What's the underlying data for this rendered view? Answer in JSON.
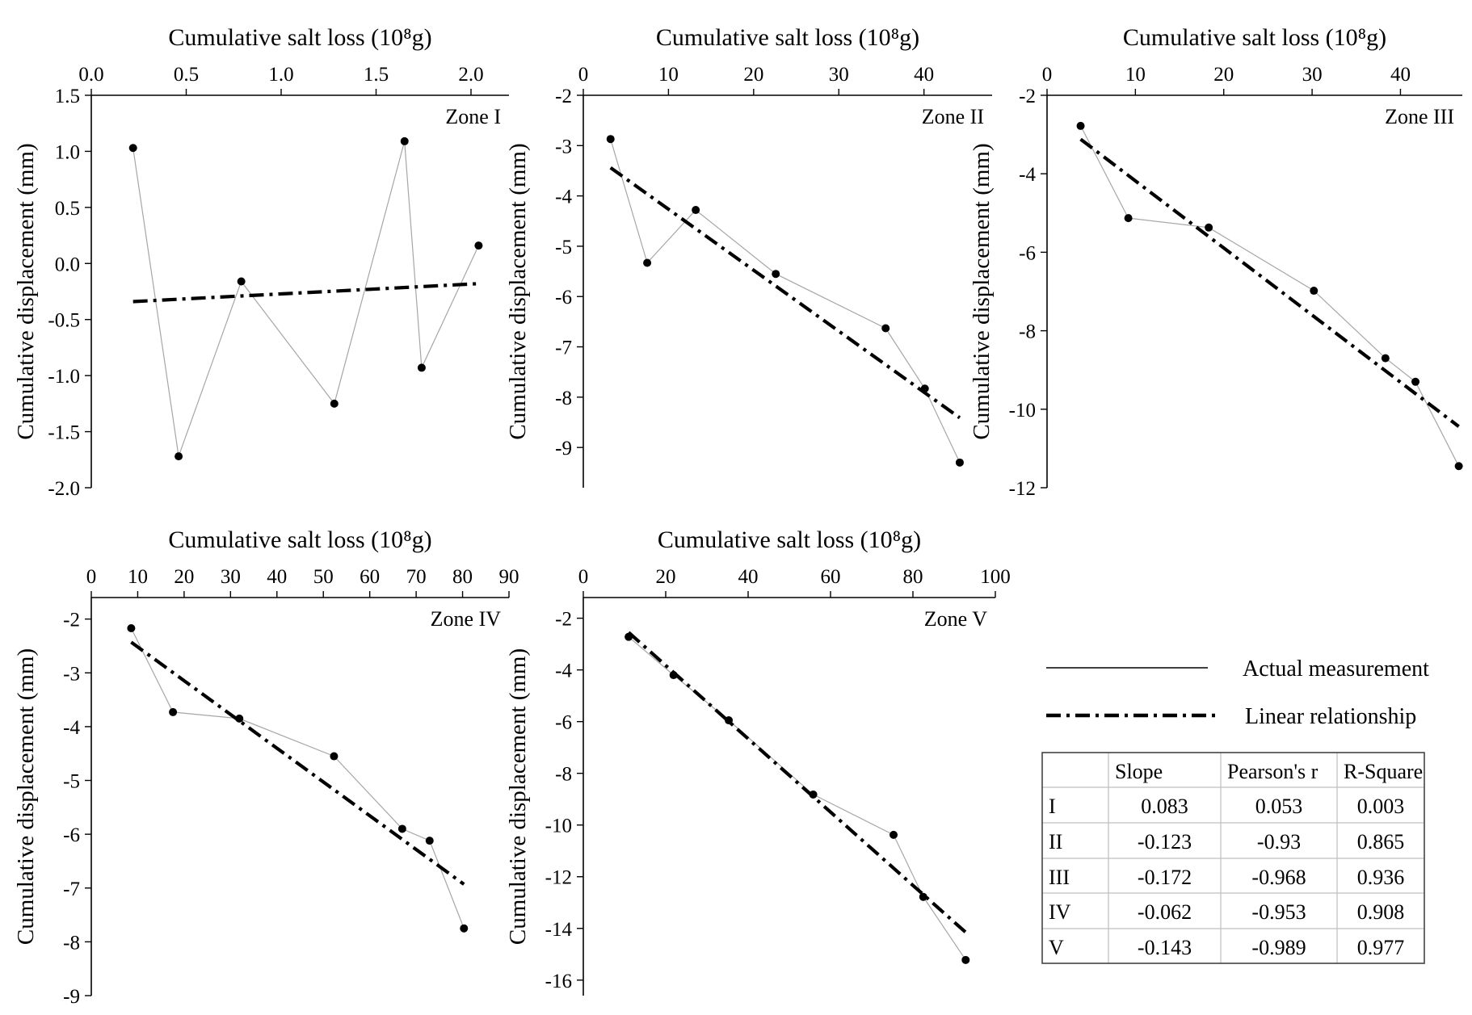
{
  "colors": {
    "measurement_line": "#a6a6a6",
    "point": "#000000",
    "fit_line": "#000000",
    "axis": "#000000",
    "table_grid": "#bfbfbf"
  },
  "chart_data": [
    {
      "type": "line",
      "zone_label": "Zone I",
      "xlabel": "Cumulative salt loss (10⁸g)",
      "ylabel": "Cumulative displacement (mm)",
      "xlim": [
        0,
        2.2
      ],
      "ylim": [
        -2.0,
        1.5
      ],
      "xticks": [
        "0.0",
        "0.5",
        "1.0",
        "1.5",
        "2.0"
      ],
      "xtick_values": [
        0,
        0.5,
        1.0,
        1.5,
        2.0
      ],
      "yticks": [
        "1.5",
        "1.0",
        "0.5",
        "0.0",
        "-0.5",
        "-1.0",
        "-1.5",
        "-2.0"
      ],
      "ytick_values": [
        1.5,
        1.0,
        0.5,
        0.0,
        -0.5,
        -1.0,
        -1.5,
        -2.0
      ],
      "series": [
        {
          "name": "Actual measurement",
          "x": [
            0.22,
            0.46,
            0.79,
            1.28,
            1.65,
            1.74,
            2.04
          ],
          "y": [
            1.03,
            -1.72,
            -0.16,
            -1.25,
            1.09,
            -0.93,
            0.16
          ]
        },
        {
          "name": "Linear relationship",
          "x": [
            0.22,
            2.04
          ],
          "y": [
            -0.34,
            -0.18
          ]
        }
      ]
    },
    {
      "type": "line",
      "zone_label": "Zone II",
      "xlabel": "Cumulative salt loss (10⁸g)",
      "ylabel": "Cumulative displacement (mm)",
      "xlim": [
        0,
        48
      ],
      "ylim": [
        -9.8,
        -2
      ],
      "xticks": [
        "0",
        "10",
        "20",
        "30",
        "40"
      ],
      "xtick_values": [
        0,
        10,
        20,
        30,
        40
      ],
      "yticks": [
        "-2",
        "-3",
        "-4",
        "-5",
        "-6",
        "-7",
        "-8",
        "-9"
      ],
      "ytick_values": [
        -2,
        -3,
        -4,
        -5,
        -6,
        -7,
        -8,
        -9
      ],
      "series": [
        {
          "name": "Actual measurement",
          "x": [
            3.2,
            7.5,
            13.2,
            22.6,
            35.5,
            40.1,
            44.2
          ],
          "y": [
            -2.87,
            -5.33,
            -4.28,
            -5.55,
            -6.63,
            -7.83,
            -9.3
          ]
        },
        {
          "name": "Linear relationship",
          "x": [
            3.2,
            44.2
          ],
          "y": [
            -3.44,
            -8.41
          ]
        }
      ]
    },
    {
      "type": "line",
      "zone_label": "Zone III",
      "xlabel": "Cumulative salt loss (10⁸g)",
      "ylabel": "Cumulative displacement (mm)",
      "xlim": [
        0,
        47
      ],
      "ylim": [
        -12,
        -2
      ],
      "xticks": [
        "0",
        "10",
        "20",
        "30",
        "40"
      ],
      "xtick_values": [
        0,
        10,
        20,
        30,
        40
      ],
      "yticks": [
        "-2",
        "-4",
        "-6",
        "-8",
        "-10",
        "-12"
      ],
      "ytick_values": [
        -2,
        -4,
        -6,
        -8,
        -10,
        -12
      ],
      "series": [
        {
          "name": "Actual measurement",
          "x": [
            3.8,
            9.2,
            18.3,
            30.2,
            38.3,
            41.7,
            46.6
          ],
          "y": [
            -2.78,
            -5.13,
            -5.37,
            -6.98,
            -8.7,
            -9.3,
            -11.45
          ]
        },
        {
          "name": "Linear relationship",
          "x": [
            3.8,
            46.6
          ],
          "y": [
            -3.12,
            -10.44
          ]
        }
      ]
    },
    {
      "type": "line",
      "zone_label": "Zone IV",
      "xlabel": "Cumulative salt loss (10⁸g)",
      "ylabel": "Cumulative displacement (mm)",
      "xlim": [
        0,
        90
      ],
      "ylim": [
        -9,
        -1.6
      ],
      "xticks": [
        "0",
        "10",
        "20",
        "30",
        "40",
        "50",
        "60",
        "70",
        "80",
        "90"
      ],
      "xtick_values": [
        0,
        10,
        20,
        30,
        40,
        50,
        60,
        70,
        80,
        90
      ],
      "yticks": [
        "-2",
        "-3",
        "-4",
        "-5",
        "-6",
        "-7",
        "-8",
        "-9"
      ],
      "ytick_values": [
        -2,
        -3,
        -4,
        -5,
        -6,
        -7,
        -8,
        -9
      ],
      "series": [
        {
          "name": "Actual measurement",
          "x": [
            8.6,
            17.6,
            31.9,
            52.3,
            67.0,
            72.9,
            80.3
          ],
          "y": [
            -2.17,
            -3.73,
            -3.85,
            -4.55,
            -5.9,
            -6.12,
            -7.75
          ]
        },
        {
          "name": "Linear relationship",
          "x": [
            8.6,
            80.3
          ],
          "y": [
            -2.43,
            -6.93
          ]
        }
      ]
    },
    {
      "type": "line",
      "zone_label": "Zone V",
      "xlabel": "Cumulative salt loss (10⁸g)",
      "ylabel": "Cumulative displacement (mm)",
      "xlim": [
        0,
        100
      ],
      "ylim": [
        -16.6,
        -1.2
      ],
      "xticks": [
        "0",
        "20",
        "40",
        "60",
        "80",
        "100"
      ],
      "xtick_values": [
        0,
        20,
        40,
        60,
        80,
        100
      ],
      "yticks": [
        "-2",
        "-4",
        "-6",
        "-8",
        "-10",
        "-12",
        "-14",
        "-16"
      ],
      "ytick_values": [
        -2,
        -4,
        -6,
        -8,
        -10,
        -12,
        -14,
        -16
      ],
      "series": [
        {
          "name": "Actual measurement",
          "x": [
            11.0,
            21.9,
            35.3,
            55.8,
            75.3,
            82.5,
            92.8
          ],
          "y": [
            -2.72,
            -4.2,
            -5.95,
            -8.82,
            -10.38,
            -12.78,
            -15.22
          ]
        },
        {
          "name": "Linear relationship",
          "x": [
            11.0,
            92.8
          ],
          "y": [
            -2.55,
            -14.15
          ]
        }
      ]
    }
  ],
  "legend": {
    "items": [
      {
        "label": "Actual measurement",
        "style": "solid"
      },
      {
        "label": "Linear relationship",
        "style": "dash-dot"
      }
    ]
  },
  "stats_table": {
    "columns": [
      "",
      "Slope",
      "Pearson's r",
      "R-Square"
    ],
    "rows": [
      [
        "I",
        "0.083",
        "0.053",
        "0.003"
      ],
      [
        "II",
        "-0.123",
        "-0.93",
        "0.865"
      ],
      [
        "III",
        "-0.172",
        "-0.968",
        "0.936"
      ],
      [
        "IV",
        "-0.062",
        "-0.953",
        "0.908"
      ],
      [
        "V",
        "-0.143",
        "-0.989",
        "0.977"
      ]
    ]
  }
}
